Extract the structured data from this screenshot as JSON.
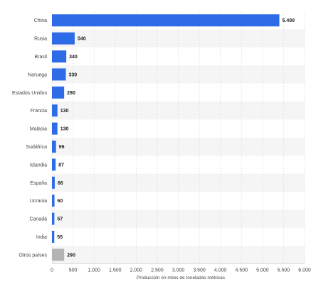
{
  "chart_data": {
    "type": "bar",
    "orientation": "horizontal",
    "categories": [
      "China",
      "Rusia",
      "Brasil",
      "Noruega",
      "Estados Unidos",
      "Francia",
      "Malasia",
      "Sudáfrica",
      "Islandia",
      "España",
      "Ucrania",
      "Canadá",
      "India",
      "Otros países"
    ],
    "values": [
      5400,
      540,
      340,
      330,
      290,
      130,
      130,
      96,
      87,
      66,
      60,
      57,
      55,
      290
    ],
    "value_labels": [
      "5.400",
      "540",
      "340",
      "330",
      "290",
      "130",
      "130",
      "96",
      "87",
      "66",
      "60",
      "57",
      "55",
      "290"
    ],
    "xlabel": "Producción en miles de toneladas métricas",
    "ylabel": "",
    "xlim": [
      0,
      6000
    ],
    "x_ticks": [
      0,
      500,
      1000,
      1500,
      2000,
      2500,
      3000,
      3500,
      4000,
      4500,
      5000,
      5500,
      6000
    ],
    "x_tick_labels": [
      "0",
      "500",
      "1.000",
      "1.500",
      "2.000",
      "2.500",
      "3.000",
      "3.500",
      "4.000",
      "4.500",
      "5.000",
      "5.500",
      "6.000"
    ],
    "grid": true,
    "colors": {
      "bar": "#2e6be6",
      "other_bar": "#b3b3b3",
      "band": "#f5f5f5",
      "grid": "#d9d9d9"
    }
  }
}
